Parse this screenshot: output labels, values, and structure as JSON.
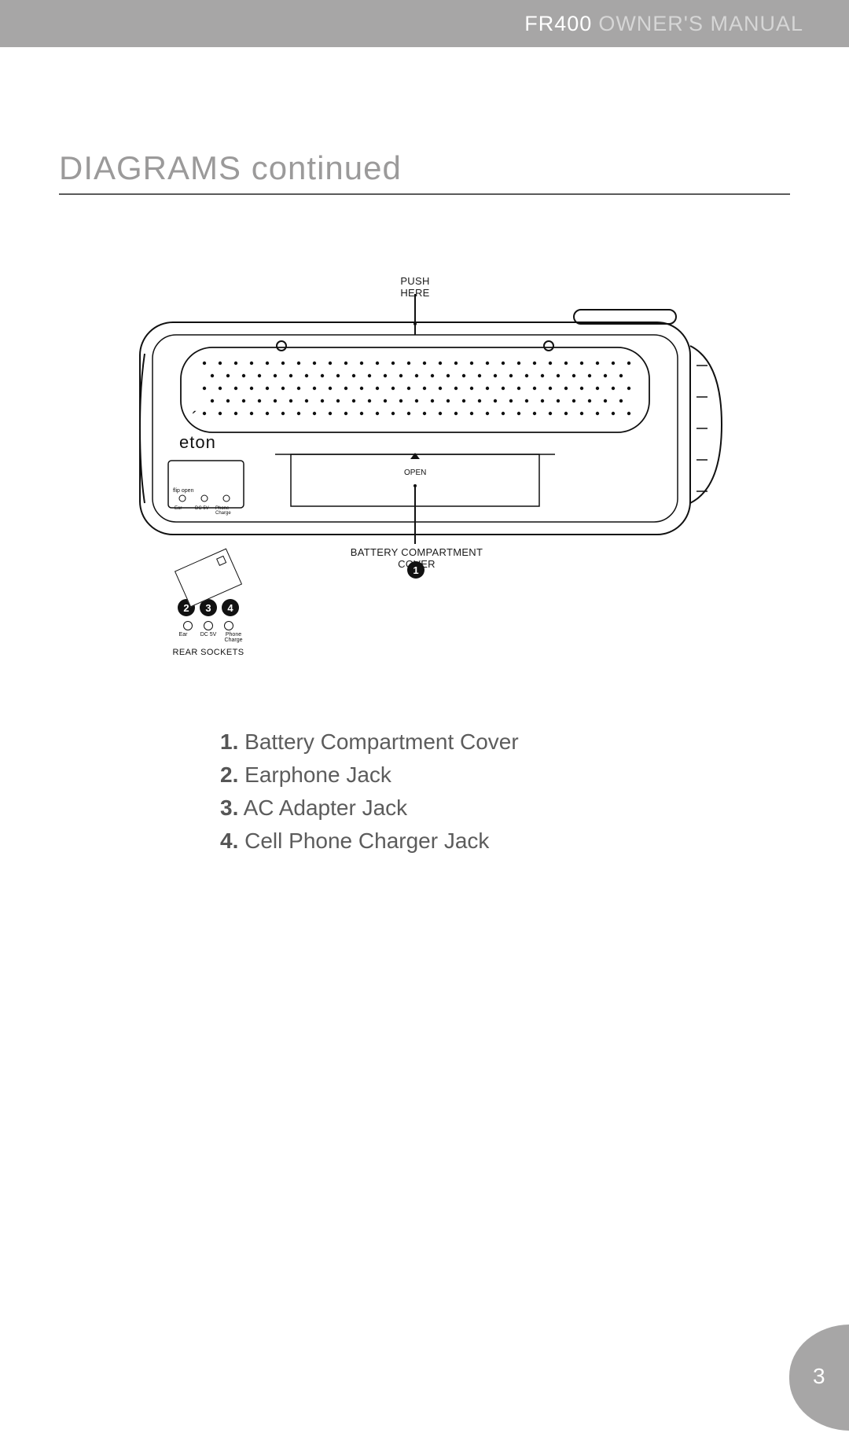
{
  "header": {
    "model": "FR400",
    "manual": "OWNER'S MANUAL"
  },
  "section_title": "DIAGRAMS continued",
  "page_number": "3",
  "diagram": {
    "brand_text": "eton",
    "open_text": "OPEN",
    "callouts": {
      "push_here": "PUSH HERE",
      "battery_cover": "BATTERY COMPARTMENT COVER",
      "rear_sockets": "REAR SOCKETS"
    },
    "bullet_labels": {
      "b1": "1",
      "b2": "2",
      "b3": "3",
      "b4": "4"
    },
    "socket_labels": {
      "s1": "Ear",
      "s2": "DC 5V",
      "s3": "Phone Charge"
    },
    "panel_small_text": "flip open",
    "colors": {
      "ink": "#111111",
      "fill": "#ffffff"
    }
  },
  "legend": {
    "items": [
      {
        "n": "1.",
        "t": "Battery Compartment Cover"
      },
      {
        "n": "2.",
        "t": "Earphone Jack"
      },
      {
        "n": "3.",
        "t": "AC Adapter Jack"
      },
      {
        "n": "4.",
        "t": "Cell Phone Charger Jack"
      }
    ]
  }
}
